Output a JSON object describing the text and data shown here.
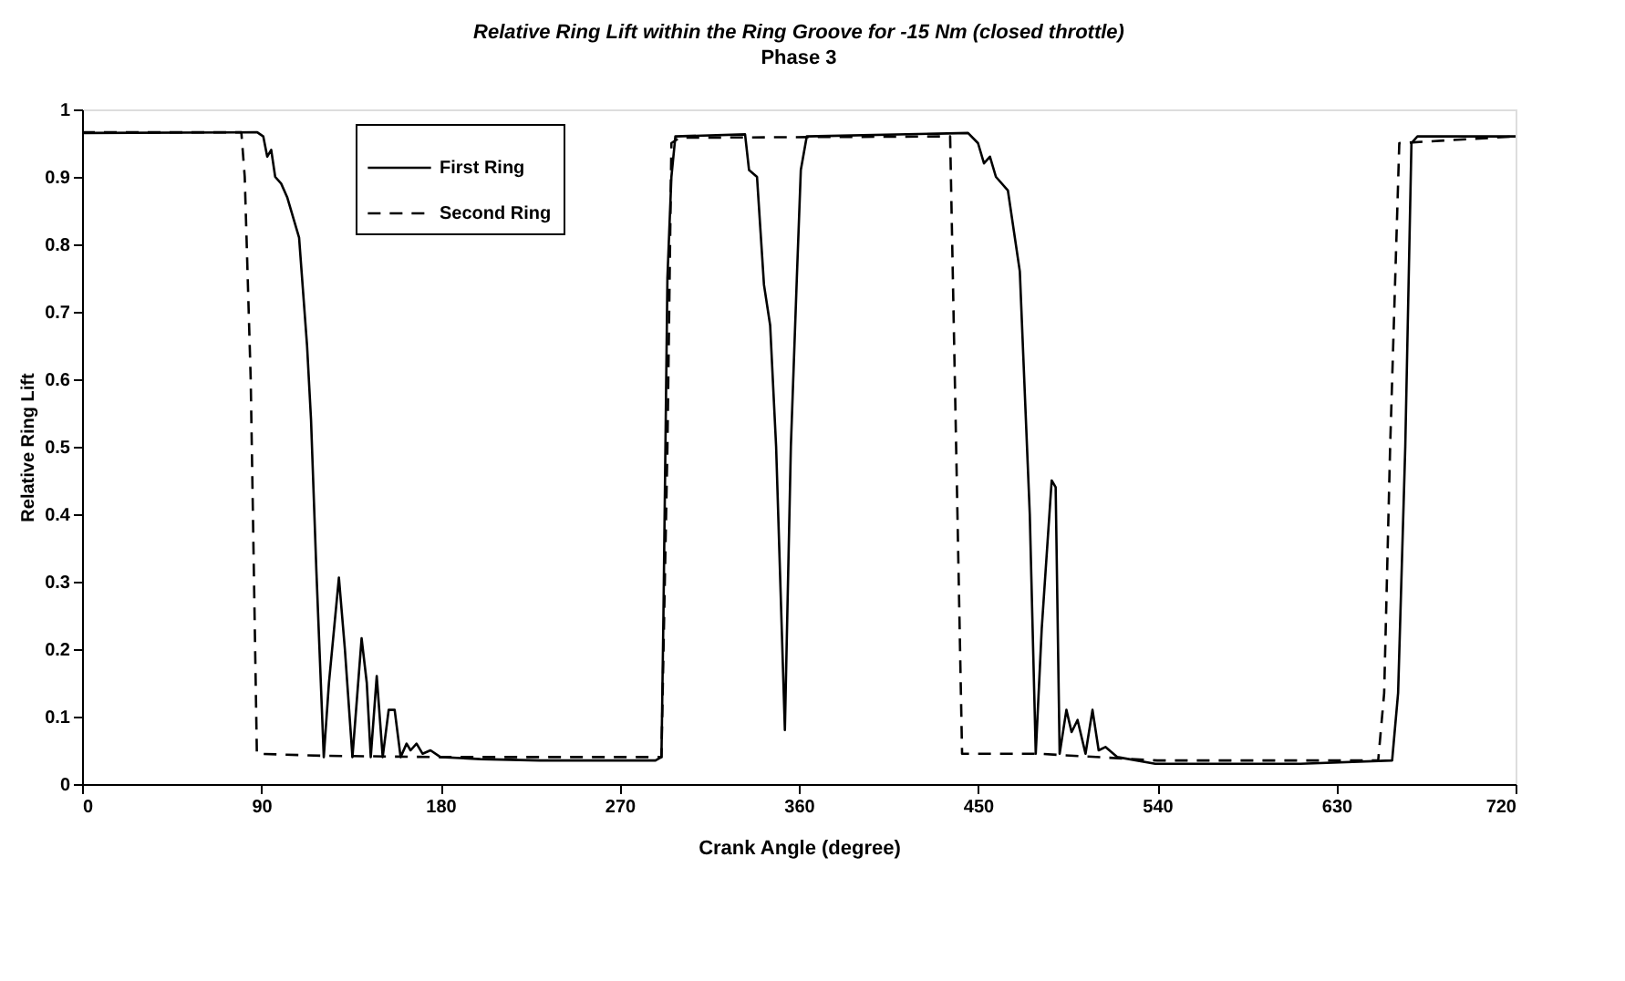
{
  "chart_data": {
    "type": "line",
    "title": "Relative Ring Lift within the Ring Groove for -15 Nm (closed throttle)",
    "subtitle": "Phase 3",
    "xlabel": "Crank Angle (degree)",
    "ylabel": "Relative Ring Lift",
    "xlim": [
      0,
      720
    ],
    "xticks": [
      0,
      90,
      180,
      270,
      360,
      450,
      540,
      630,
      720
    ],
    "ylim": [
      0,
      1
    ],
    "yticks": [
      0,
      0.1,
      0.2,
      0.3,
      0.4,
      0.5,
      0.6,
      0.7,
      0.8,
      0.9,
      1
    ],
    "grid": false,
    "legend": "top left",
    "marker": "none",
    "series": [
      {
        "name": "First Ring",
        "color": "#000000",
        "line_style": "solid",
        "x": [
          0,
          88,
          91,
          93,
          95,
          97,
          100,
          103,
          109,
          113,
          115,
          117.7,
          121.4,
          124,
          129,
          132,
          135.8,
          140.4,
          143,
          145,
          148,
          151,
          154,
          157,
          160,
          163,
          165,
          168,
          171,
          175,
          180,
          200,
          230,
          288,
          291,
          292,
          294,
          296,
          298,
          333,
          335,
          339,
          342.5,
          345.6,
          348.6,
          353,
          356,
          359,
          361,
          364,
          445,
          450,
          453,
          456,
          459,
          465,
          471,
          476,
          479,
          482,
          487,
          489,
          491,
          494.4,
          497,
          500,
          504,
          507.5,
          510.6,
          514,
          520,
          539,
          612,
          658,
          661,
          664.6,
          667.7,
          670.7,
          720
        ],
        "values": [
          0.965,
          0.966,
          0.96,
          0.93,
          0.94,
          0.9,
          0.89,
          0.87,
          0.81,
          0.65,
          0.54,
          0.315,
          0.04,
          0.15,
          0.306,
          0.2,
          0.04,
          0.216,
          0.15,
          0.04,
          0.16,
          0.04,
          0.11,
          0.11,
          0.04,
          0.06,
          0.05,
          0.06,
          0.045,
          0.05,
          0.04,
          0.037,
          0.035,
          0.035,
          0.04,
          0.25,
          0.75,
          0.9,
          0.96,
          0.963,
          0.91,
          0.9,
          0.74,
          0.68,
          0.5,
          0.08,
          0.5,
          0.75,
          0.91,
          0.96,
          0.965,
          0.95,
          0.92,
          0.93,
          0.9,
          0.88,
          0.76,
          0.4,
          0.045,
          0.23,
          0.45,
          0.44,
          0.045,
          0.11,
          0.077,
          0.095,
          0.045,
          0.11,
          0.05,
          0.055,
          0.04,
          0.03,
          0.03,
          0.035,
          0.135,
          0.5,
          0.95,
          0.96,
          0.96
        ]
      },
      {
        "name": "Second Ring",
        "color": "#000000",
        "line_style": "dashed",
        "x": [
          0,
          80,
          81.7,
          84.7,
          87.8,
          120,
          180,
          291,
          294,
          296,
          300,
          436,
          442,
          480,
          540,
          651,
          654,
          657,
          661.6,
          720
        ],
        "values": [
          0.966,
          0.966,
          0.9,
          0.6,
          0.045,
          0.042,
          0.04,
          0.04,
          0.5,
          0.95,
          0.958,
          0.96,
          0.045,
          0.045,
          0.035,
          0.035,
          0.135,
          0.5,
          0.95,
          0.96
        ]
      }
    ]
  }
}
